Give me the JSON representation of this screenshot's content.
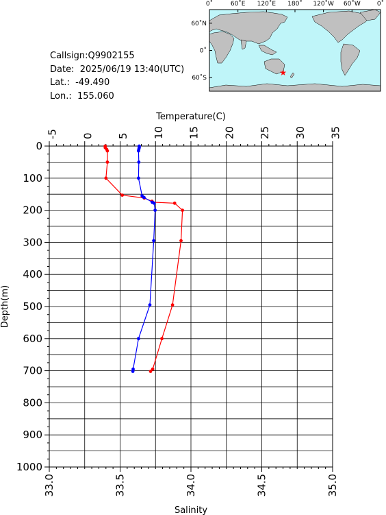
{
  "station": {
    "callsign": "Callsign:Q9902155",
    "date": "Date:  2025/06/19 13:40(UTC)",
    "lat": "Lat.:  -49.490",
    "lon": "Lon.:  155.060"
  },
  "map": {
    "top_labels": [
      "0˚",
      "60˚E",
      "120˚E",
      "180˚",
      "120˚W",
      "60˚W",
      "0˚"
    ],
    "left_labels": [
      "60˚N",
      "0˚",
      "60˚S"
    ],
    "marker": {
      "lat": -49.49,
      "lon": 155.06,
      "symbol": "★"
    },
    "colors": {
      "ocean": "#bff5f9",
      "land": "#c0c0c0",
      "marker": "#ff0000"
    }
  },
  "chart_data": {
    "type": "line",
    "top_axis_label": "Temperature(C)",
    "bottom_axis_label": "Salinity",
    "y_axis_label": "Depth(m)",
    "temperature_ticks": [
      "-5",
      "0",
      "5",
      "10",
      "15",
      "20",
      "25",
      "30",
      "35"
    ],
    "salinity_ticks": [
      "33.0",
      "33.5",
      "34.0",
      "34.5",
      "35.0"
    ],
    "depth_ticks": [
      "0",
      "100",
      "200",
      "300",
      "400",
      "500",
      "600",
      "700",
      "800",
      "900",
      "1000"
    ],
    "temperature_range": [
      -5,
      35
    ],
    "salinity_range": [
      33.0,
      35.0
    ],
    "depth_range": [
      0,
      1000
    ],
    "grid": true,
    "series": [
      {
        "name": "Temperature",
        "axis": "temperature",
        "color": "#ff0000",
        "points": [
          [
            2.9,
            0
          ],
          [
            2.9,
            5
          ],
          [
            3.1,
            10
          ],
          [
            3.2,
            15
          ],
          [
            3.2,
            50
          ],
          [
            3.0,
            100
          ],
          [
            5.3,
            153
          ],
          [
            8.4,
            162
          ],
          [
            9.5,
            172
          ],
          [
            9.6,
            175
          ],
          [
            12.7,
            178
          ],
          [
            13.8,
            200
          ],
          [
            13.6,
            295
          ],
          [
            12.4,
            495
          ],
          [
            10.9,
            600
          ],
          [
            9.6,
            695
          ],
          [
            9.3,
            702
          ]
        ]
      },
      {
        "name": "Salinity",
        "axis": "salinity",
        "color": "#0000ff",
        "points": [
          [
            33.635,
            0
          ],
          [
            33.635,
            5
          ],
          [
            33.632,
            10
          ],
          [
            33.63,
            15
          ],
          [
            33.632,
            50
          ],
          [
            33.63,
            100
          ],
          [
            33.655,
            155
          ],
          [
            33.668,
            160
          ],
          [
            33.727,
            175
          ],
          [
            33.74,
            178
          ],
          [
            33.747,
            200
          ],
          [
            33.737,
            295
          ],
          [
            33.71,
            495
          ],
          [
            33.63,
            600
          ],
          [
            33.592,
            695
          ],
          [
            33.59,
            702
          ]
        ]
      }
    ]
  }
}
